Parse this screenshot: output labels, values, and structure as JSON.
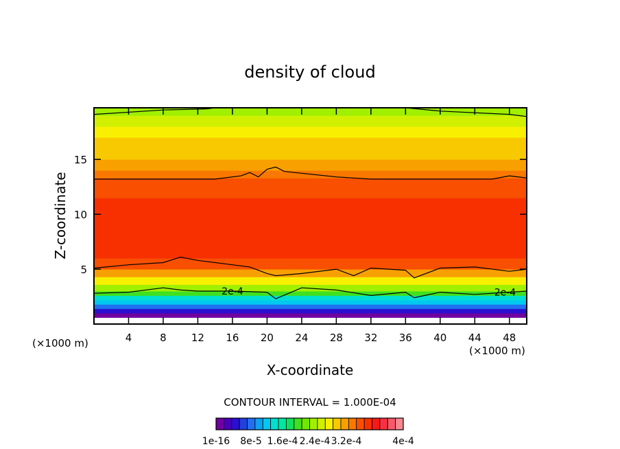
{
  "chart_data": {
    "type": "heatmap",
    "title": "density of cloud",
    "xlabel": "X-coordinate",
    "ylabel": "Z-coordinate",
    "x_unit_left": "(×1000 m)",
    "x_unit_right": "(×1000 m)",
    "xlim": [
      0,
      50
    ],
    "ylim": [
      0,
      19.7
    ],
    "xticks": [
      4,
      8,
      12,
      16,
      20,
      24,
      28,
      32,
      36,
      40,
      44,
      48
    ],
    "yticks": [
      5,
      10,
      15
    ],
    "contour_interval_text": "CONTOUR INTERVAL = 1.000E-04",
    "contour_labels": [
      {
        "text": "2e-4",
        "x": 16.0,
        "z": 3.0
      },
      {
        "text": "2e-4",
        "x": 47.5,
        "z": 2.9
      }
    ],
    "colorbar": {
      "labels": [
        "1e-16",
        "8e-5",
        "1.6e-4",
        "2.4e-4",
        "3.2e-4",
        "4e-4"
      ],
      "colors": [
        "#7000a0",
        "#4a00b8",
        "#2a10d0",
        "#2040e0",
        "#2070f0",
        "#10a0f0",
        "#00c8f0",
        "#00e0d0",
        "#00e8a0",
        "#10e060",
        "#40e020",
        "#70e800",
        "#a0f000",
        "#d0f000",
        "#f8f000",
        "#f8c800",
        "#f8a000",
        "#f87800",
        "#f85000",
        "#f83000",
        "#f81818",
        "#f83040",
        "#f85868",
        "#f88890"
      ],
      "color_notes": "violet to blue to cyan to green to yellow to orange to red to pink"
    },
    "profile": [
      {
        "z": 0.6,
        "value": 0.0
      },
      {
        "z": 1.0,
        "value": 2e-05
      },
      {
        "z": 1.4,
        "value": 5e-05
      },
      {
        "z": 1.8,
        "value": 8.5e-05
      },
      {
        "z": 2.2,
        "value": 0.000115
      },
      {
        "z": 2.6,
        "value": 0.000145
      },
      {
        "z": 3.0,
        "value": 0.0002
      },
      {
        "z": 3.6,
        "value": 0.00023
      },
      {
        "z": 4.3,
        "value": 0.00026
      },
      {
        "z": 5.0,
        "value": 0.0003
      },
      {
        "z": 6.0,
        "value": 0.000315
      },
      {
        "z": 7.5,
        "value": 0.00033
      },
      {
        "z": 9.0,
        "value": 0.000335
      },
      {
        "z": 10.5,
        "value": 0.00033
      },
      {
        "z": 11.5,
        "value": 0.00032
      },
      {
        "z": 12.5,
        "value": 0.000305
      },
      {
        "z": 13.3,
        "value": 0.0003
      },
      {
        "z": 14.0,
        "value": 0.000285
      },
      {
        "z": 15.0,
        "value": 0.00027
      },
      {
        "z": 16.0,
        "value": 0.000255
      },
      {
        "z": 17.0,
        "value": 0.000245
      },
      {
        "z": 18.0,
        "value": 0.00023
      },
      {
        "z": 19.0,
        "value": 0.000215
      },
      {
        "z": 19.7,
        "value": 0.0002
      }
    ],
    "contour_lines": [
      {
        "level": 0.0003,
        "x": [
          0,
          4,
          8,
          10,
          12,
          16,
          18,
          20,
          21,
          24,
          28,
          30,
          32,
          36,
          37,
          40,
          44,
          48,
          50
        ],
        "z": [
          5.1,
          5.4,
          5.6,
          6.1,
          5.8,
          5.4,
          5.2,
          4.6,
          4.4,
          4.6,
          5.0,
          4.4,
          5.1,
          4.9,
          4.2,
          5.1,
          5.2,
          4.8,
          5.0
        ]
      },
      {
        "level": 0.0002,
        "x": [
          0,
          4,
          8,
          10,
          12,
          16,
          20,
          21,
          24,
          28,
          32,
          36,
          37,
          40,
          44,
          48,
          50
        ],
        "z": [
          2.8,
          2.9,
          3.3,
          3.1,
          3.0,
          3.0,
          2.9,
          2.3,
          3.3,
          3.1,
          2.6,
          2.9,
          2.4,
          2.9,
          2.7,
          2.9,
          3.0
        ]
      },
      {
        "level": 0.0003,
        "x": [
          0,
          8,
          14,
          17,
          18,
          19,
          20,
          21,
          22,
          28,
          32,
          40,
          46,
          48,
          50
        ],
        "z": [
          13.2,
          13.2,
          13.2,
          13.5,
          13.8,
          13.4,
          14.1,
          14.3,
          13.9,
          13.4,
          13.2,
          13.2,
          13.2,
          13.5,
          13.3
        ]
      },
      {
        "level": 0.0002,
        "x": [
          0,
          8,
          13,
          14,
          16,
          36,
          40,
          48,
          50
        ],
        "z": [
          19.1,
          19.5,
          19.6,
          19.7,
          19.7,
          19.7,
          19.4,
          19.1,
          18.9
        ]
      }
    ]
  }
}
